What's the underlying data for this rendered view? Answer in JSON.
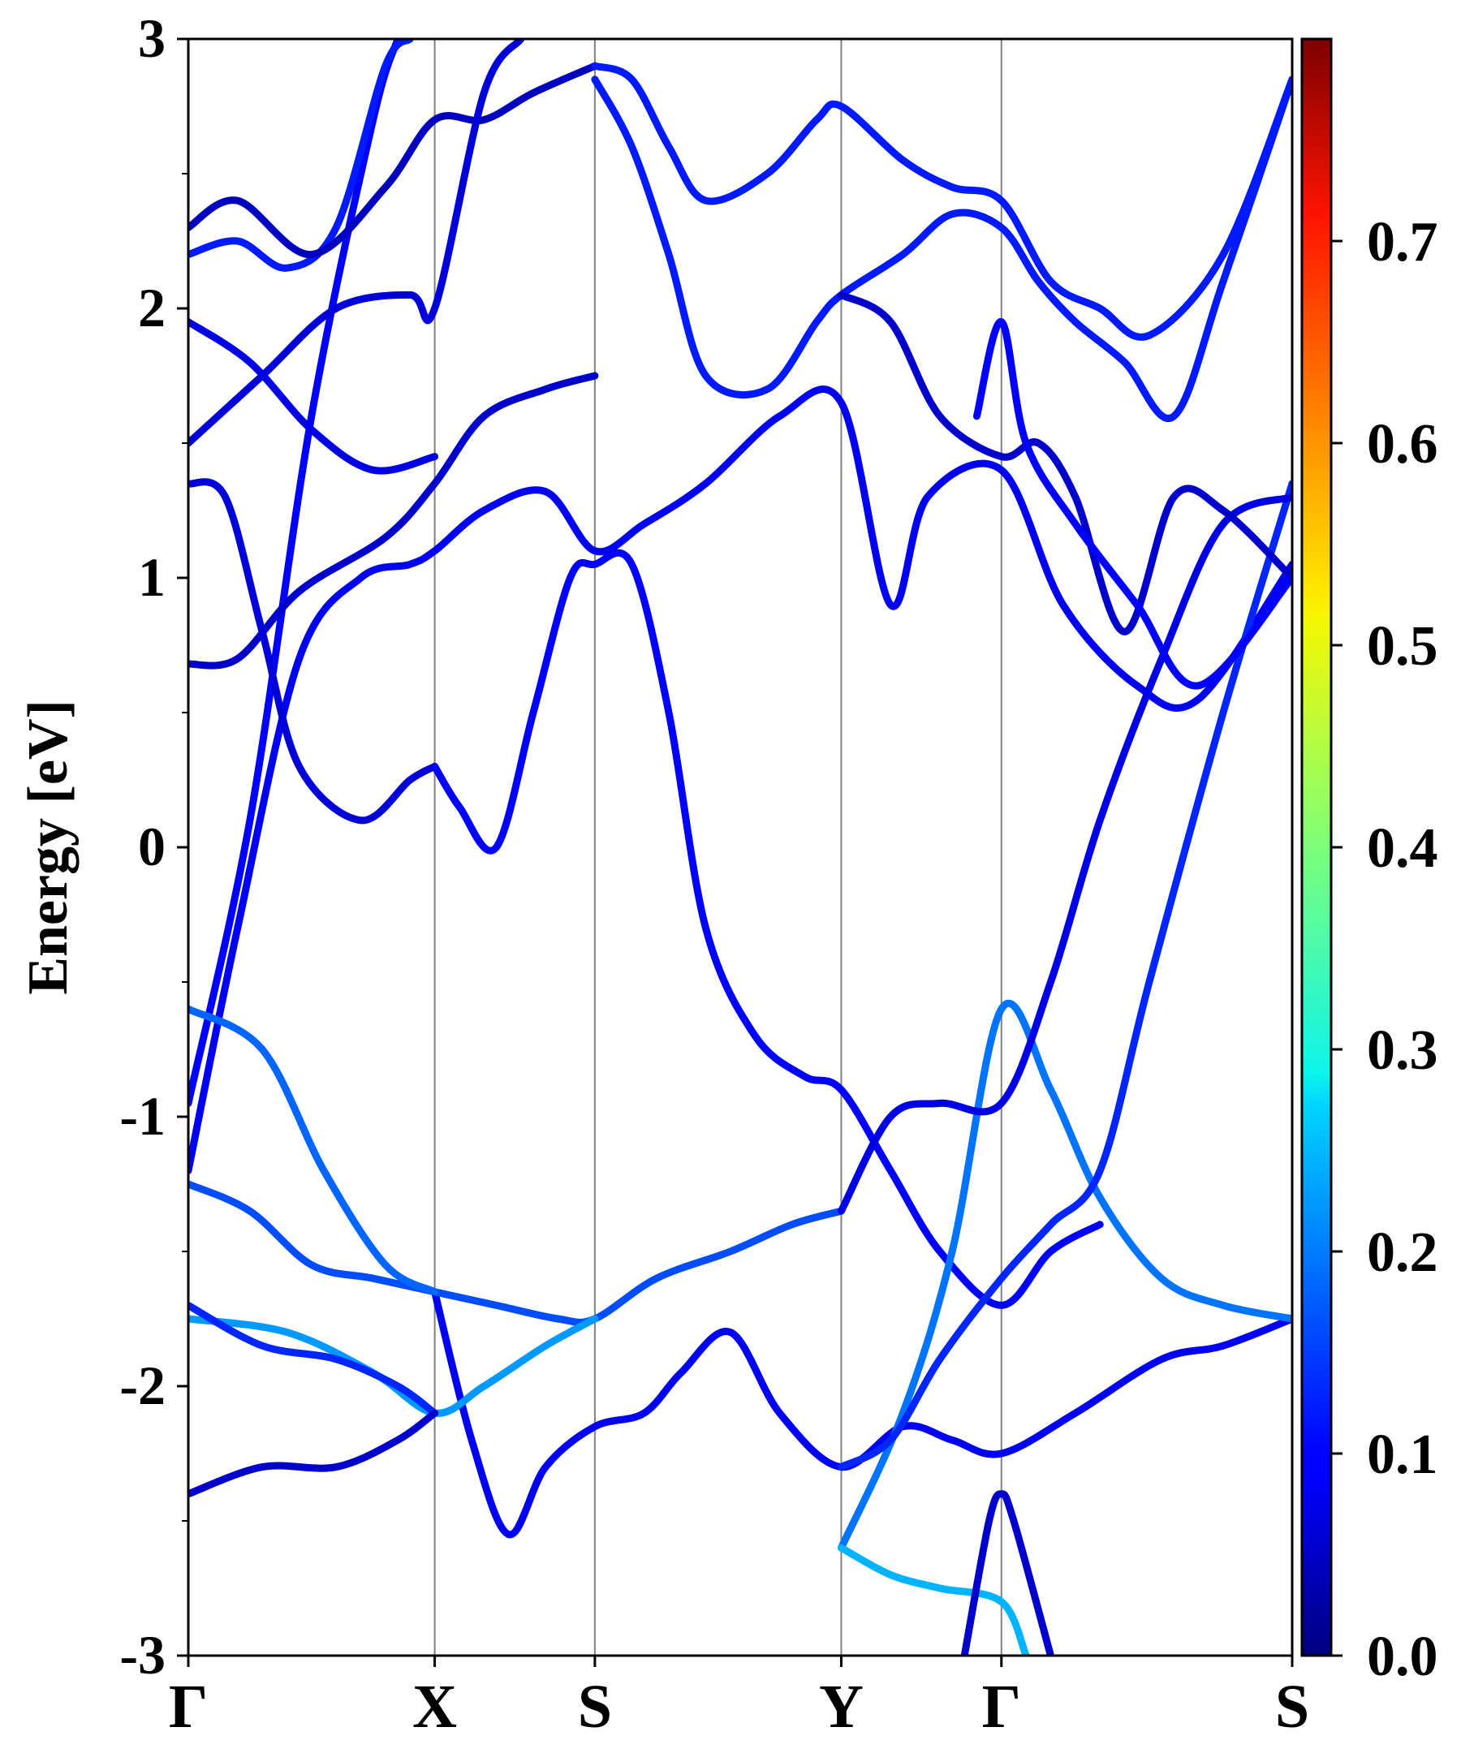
{
  "chart_data": {
    "type": "line",
    "title": "",
    "xlabel": "",
    "ylabel": "Energy [eV]",
    "ylim": [
      -3,
      3
    ],
    "yticks": [
      -3,
      -2,
      -1,
      0,
      1,
      2,
      3
    ],
    "ytick_labels": [
      "-3",
      "-2",
      "-1",
      "0",
      "1",
      "2",
      "3"
    ],
    "k_points": [
      {
        "label": "Γ",
        "pos": 0.0
      },
      {
        "label": "X",
        "pos": 1.0
      },
      {
        "label": "S",
        "pos": 1.65
      },
      {
        "label": "Y",
        "pos": 2.65
      },
      {
        "label": "Γ",
        "pos": 3.3
      },
      {
        "label": "S",
        "pos": 4.48
      }
    ],
    "xlim": [
      0,
      4.48
    ],
    "grid": false,
    "colorbar": {
      "colormap": "jet",
      "range": [
        0.0,
        0.8
      ],
      "ticks": [
        0.0,
        0.1,
        0.2,
        0.3,
        0.4,
        0.5,
        0.6,
        0.7
      ],
      "tick_labels": [
        "0.0",
        "0.1",
        "0.2",
        "0.3",
        "0.4",
        "0.5",
        "0.6",
        "0.7"
      ]
    },
    "series": [
      {
        "weight": 0.1,
        "points": [
          [
            0,
            -0.95
          ],
          [
            0.25,
            0.1
          ],
          [
            0.5,
            1.6
          ],
          [
            0.75,
            2.7
          ],
          [
            0.85,
            3.0
          ]
        ]
      },
      {
        "weight": 0.09,
        "points": [
          [
            0,
            -1.2
          ],
          [
            0.2,
            -0.3
          ],
          [
            0.45,
            0.7
          ],
          [
            0.7,
            1.0
          ],
          [
            0.9,
            1.05
          ],
          [
            1.0,
            1.1
          ],
          [
            1.2,
            1.25
          ],
          [
            1.45,
            1.32
          ],
          [
            1.65,
            1.1
          ],
          [
            1.85,
            1.2
          ],
          [
            2.1,
            1.35
          ],
          [
            2.4,
            1.6
          ],
          [
            2.65,
            1.65
          ],
          [
            2.85,
            0.9
          ],
          [
            3.0,
            1.3
          ],
          [
            3.3,
            1.4
          ],
          [
            3.55,
            0.9
          ],
          [
            3.85,
            0.6
          ],
          [
            4.1,
            0.55
          ],
          [
            4.48,
            1.05
          ]
        ]
      },
      {
        "weight": 0.06,
        "points": [
          [
            0,
            0.68
          ],
          [
            0.2,
            0.7
          ],
          [
            0.45,
            0.95
          ],
          [
            0.8,
            1.15
          ],
          [
            1.0,
            1.35
          ],
          [
            1.2,
            1.6
          ],
          [
            1.45,
            1.7
          ],
          [
            1.65,
            1.75
          ]
        ]
      },
      {
        "weight": 0.07,
        "points": [
          [
            0,
            1.35
          ],
          [
            0.15,
            1.3
          ],
          [
            0.3,
            0.8
          ],
          [
            0.45,
            0.3
          ],
          [
            0.7,
            0.1
          ],
          [
            0.9,
            0.25
          ],
          [
            1.0,
            0.3
          ]
        ]
      },
      {
        "weight": 0.1,
        "points": [
          [
            1.0,
            0.3
          ],
          [
            1.1,
            0.15
          ],
          [
            1.25,
            0.0
          ],
          [
            1.4,
            0.5
          ],
          [
            1.55,
            1.0
          ],
          [
            1.65,
            1.05
          ],
          [
            1.8,
            1.05
          ],
          [
            1.95,
            0.5
          ],
          [
            2.1,
            -0.3
          ],
          [
            2.3,
            -0.7
          ],
          [
            2.5,
            -0.85
          ],
          [
            2.65,
            -0.9
          ],
          [
            2.85,
            -1.2
          ],
          [
            3.05,
            -1.5
          ],
          [
            3.3,
            -1.7
          ],
          [
            3.5,
            -1.5
          ],
          [
            3.7,
            -1.4
          ]
        ]
      },
      {
        "weight": 0.09,
        "points": [
          [
            1.0,
            -1.65
          ],
          [
            1.15,
            -2.2
          ],
          [
            1.3,
            -2.55
          ],
          [
            1.45,
            -2.3
          ],
          [
            1.65,
            -2.15
          ],
          [
            1.85,
            -2.1
          ],
          [
            2.0,
            -1.95
          ],
          [
            2.2,
            -1.8
          ],
          [
            2.4,
            -2.1
          ],
          [
            2.65,
            -2.3
          ],
          [
            2.9,
            -2.15
          ],
          [
            3.1,
            -2.2
          ],
          [
            3.3,
            -2.25
          ],
          [
            3.6,
            -2.1
          ],
          [
            3.95,
            -1.9
          ],
          [
            4.2,
            -1.85
          ],
          [
            4.48,
            -1.75
          ]
        ]
      },
      {
        "weight": 0.16,
        "points": [
          [
            0,
            -1.25
          ],
          [
            0.25,
            -1.35
          ],
          [
            0.5,
            -1.55
          ],
          [
            0.75,
            -1.6
          ],
          [
            1.0,
            -1.65
          ],
          [
            1.25,
            -1.7
          ],
          [
            1.5,
            -1.75
          ],
          [
            1.65,
            -1.75
          ],
          [
            1.9,
            -1.6
          ],
          [
            2.2,
            -1.5
          ],
          [
            2.45,
            -1.4
          ],
          [
            2.65,
            -1.35
          ]
        ]
      },
      {
        "weight": 0.18,
        "points": [
          [
            0,
            -0.6
          ],
          [
            0.3,
            -0.75
          ],
          [
            0.55,
            -1.2
          ],
          [
            0.8,
            -1.55
          ],
          [
            1.0,
            -1.65
          ]
        ]
      },
      {
        "weight": 0.22,
        "points": [
          [
            0,
            -1.75
          ],
          [
            0.4,
            -1.8
          ],
          [
            0.75,
            -1.95
          ],
          [
            1.0,
            -2.1
          ],
          [
            1.2,
            -2.0
          ],
          [
            1.45,
            -1.85
          ],
          [
            1.65,
            -1.75
          ]
        ]
      },
      {
        "weight": 0.13,
        "points": [
          [
            0,
            -1.7
          ],
          [
            0.3,
            -1.85
          ],
          [
            0.6,
            -1.9
          ],
          [
            0.85,
            -2.0
          ],
          [
            1.0,
            -2.1
          ]
        ]
      },
      {
        "weight": 0.06,
        "points": [
          [
            0,
            -2.4
          ],
          [
            0.3,
            -2.3
          ],
          [
            0.6,
            -2.3
          ],
          [
            0.85,
            -2.2
          ],
          [
            1.0,
            -2.1
          ]
        ]
      },
      {
        "weight": 0.19,
        "points": [
          [
            2.65,
            -2.6
          ],
          [
            2.9,
            -2.1
          ],
          [
            3.1,
            -1.5
          ],
          [
            3.3,
            -0.6
          ],
          [
            3.5,
            -0.9
          ],
          [
            3.7,
            -1.3
          ],
          [
            3.95,
            -1.6
          ],
          [
            4.2,
            -1.7
          ],
          [
            4.48,
            -1.75
          ]
        ]
      },
      {
        "weight": 0.24,
        "points": [
          [
            2.65,
            -2.6
          ],
          [
            2.85,
            -2.7
          ],
          [
            3.05,
            -2.75
          ],
          [
            3.3,
            -2.8
          ],
          [
            3.4,
            -3.0
          ]
        ]
      },
      {
        "weight": 0.13,
        "points": [
          [
            2.65,
            -2.3
          ],
          [
            2.85,
            -2.2
          ],
          [
            3.05,
            -1.9
          ],
          [
            3.3,
            -1.6
          ],
          [
            3.5,
            -1.4
          ],
          [
            3.7,
            -1.2
          ],
          [
            3.9,
            -0.5
          ],
          [
            4.2,
            0.5
          ],
          [
            4.48,
            1.35
          ]
        ]
      },
      {
        "weight": 0.08,
        "points": [
          [
            2.65,
            -1.35
          ],
          [
            2.85,
            -1.0
          ],
          [
            3.05,
            -0.95
          ],
          [
            3.3,
            -0.95
          ],
          [
            3.5,
            -0.5
          ],
          [
            3.7,
            0.1
          ],
          [
            3.95,
            0.7
          ],
          [
            4.2,
            1.2
          ],
          [
            4.48,
            1.3
          ]
        ]
      },
      {
        "weight": 0.12,
        "points": [
          [
            0,
            2.2
          ],
          [
            0.2,
            2.25
          ],
          [
            0.4,
            2.15
          ],
          [
            0.6,
            2.3
          ],
          [
            0.8,
            2.9
          ],
          [
            0.9,
            3.0
          ]
        ]
      },
      {
        "weight": 0.05,
        "points": [
          [
            0,
            2.3
          ],
          [
            0.2,
            2.4
          ],
          [
            0.5,
            2.2
          ],
          [
            0.8,
            2.45
          ],
          [
            1.0,
            2.7
          ],
          [
            1.2,
            2.7
          ],
          [
            1.4,
            2.8
          ],
          [
            1.65,
            2.9
          ]
        ]
      },
      {
        "weight": 0.12,
        "points": [
          [
            1.65,
            2.9
          ],
          [
            1.8,
            2.85
          ],
          [
            1.95,
            2.6
          ],
          [
            2.1,
            2.4
          ],
          [
            2.35,
            2.5
          ],
          [
            2.55,
            2.7
          ],
          [
            2.65,
            2.75
          ],
          [
            2.9,
            2.55
          ],
          [
            3.1,
            2.45
          ],
          [
            3.3,
            2.4
          ],
          [
            3.5,
            2.1
          ],
          [
            3.7,
            2.0
          ],
          [
            3.9,
            1.9
          ],
          [
            4.2,
            2.2
          ],
          [
            4.48,
            2.85
          ]
        ]
      },
      {
        "weight": 0.12,
        "points": [
          [
            1.65,
            2.85
          ],
          [
            1.8,
            2.6
          ],
          [
            1.95,
            2.2
          ],
          [
            2.1,
            1.75
          ],
          [
            2.35,
            1.7
          ],
          [
            2.55,
            1.95
          ],
          [
            2.65,
            2.05
          ],
          [
            2.9,
            2.2
          ],
          [
            3.1,
            2.35
          ],
          [
            3.3,
            2.3
          ],
          [
            3.45,
            2.1
          ],
          [
            3.6,
            1.95
          ],
          [
            3.8,
            1.8
          ],
          [
            4.0,
            1.6
          ],
          [
            4.2,
            2.1
          ],
          [
            4.48,
            2.85
          ]
        ]
      },
      {
        "weight": 0.07,
        "points": [
          [
            0,
            1.5
          ],
          [
            0.3,
            1.75
          ],
          [
            0.6,
            2.0
          ],
          [
            0.9,
            2.05
          ],
          [
            1.0,
            2.0
          ],
          [
            1.2,
            2.8
          ],
          [
            1.35,
            3.0
          ]
        ]
      },
      {
        "weight": 0.08,
        "points": [
          [
            0,
            1.95
          ],
          [
            0.25,
            1.8
          ],
          [
            0.5,
            1.55
          ],
          [
            0.75,
            1.4
          ],
          [
            1.0,
            1.45
          ]
        ]
      },
      {
        "weight": 0.06,
        "points": [
          [
            2.65,
            2.05
          ],
          [
            2.85,
            1.95
          ],
          [
            3.05,
            1.6
          ],
          [
            3.3,
            1.45
          ],
          [
            3.45,
            1.5
          ],
          [
            3.6,
            1.3
          ],
          [
            3.8,
            0.8
          ],
          [
            4.0,
            1.3
          ],
          [
            4.2,
            1.25
          ],
          [
            4.48,
            1.0
          ]
        ]
      },
      {
        "weight": 0.1,
        "points": [
          [
            3.2,
            1.6
          ],
          [
            3.3,
            1.95
          ],
          [
            3.4,
            1.5
          ],
          [
            3.6,
            1.2
          ],
          [
            3.85,
            0.9
          ],
          [
            4.1,
            0.6
          ],
          [
            4.48,
            1.0
          ]
        ]
      },
      {
        "weight": 0.06,
        "points": [
          [
            3.15,
            -3.0
          ],
          [
            3.25,
            -2.5
          ],
          [
            3.3,
            -2.4
          ],
          [
            3.35,
            -2.5
          ],
          [
            3.5,
            -3.0
          ]
        ]
      }
    ]
  }
}
